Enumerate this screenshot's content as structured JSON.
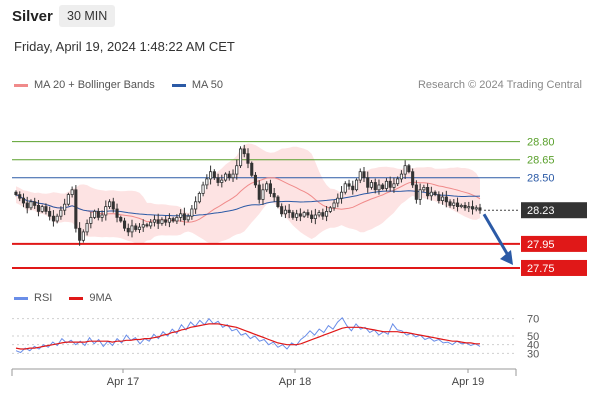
{
  "header": {
    "instrument": "Silver",
    "timeframe": "30 MIN",
    "datetime": "Friday, April 19, 2024 1:48:22 AM CET"
  },
  "price_legend": {
    "items": [
      {
        "label": "MA 20 + Bollinger Bands",
        "color": "#f08a8a"
      },
      {
        "label": "MA 50",
        "color": "#2b5aa6"
      }
    ],
    "credit": "Research © 2024 Trading Central"
  },
  "rsi_legend": {
    "items": [
      {
        "label": "RSI",
        "color": "#6a8ee8"
      },
      {
        "label": "9MA",
        "color": "#e01818"
      }
    ]
  },
  "colors": {
    "resistance": "#5aa02c",
    "pivot": "#2b5aa6",
    "support": "#e01818",
    "candle_up": "#ffffff",
    "candle_down": "#333333",
    "band_fill": "#fde3e3",
    "arrow": "#2b5aa6"
  },
  "chart_data": [
    {
      "type": "candlestick",
      "name": "price",
      "x_ticks": [
        "Apr 17",
        "Apr 18",
        "Apr 19"
      ],
      "ylim": [
        27.65,
        28.93
      ],
      "levels": [
        {
          "label": "28.80",
          "value": 28.8,
          "kind": "resistance"
        },
        {
          "label": "28.65",
          "value": 28.65,
          "kind": "resistance"
        },
        {
          "label": "28.50",
          "value": 28.5,
          "kind": "pivot"
        },
        {
          "label": "28.23",
          "value": 28.23,
          "kind": "last"
        },
        {
          "label": "27.95",
          "value": 27.95,
          "kind": "support"
        },
        {
          "label": "27.75",
          "value": 27.75,
          "kind": "support"
        }
      ],
      "closes": [
        28.36,
        28.33,
        28.29,
        28.25,
        28.3,
        28.27,
        28.22,
        28.26,
        28.22,
        28.18,
        28.14,
        28.18,
        28.23,
        28.28,
        28.36,
        28.4,
        28.08,
        27.98,
        28.05,
        28.12,
        28.17,
        28.22,
        28.17,
        28.19,
        28.26,
        28.3,
        28.24,
        28.17,
        28.14,
        28.08,
        28.05,
        28.1,
        28.07,
        28.09,
        28.11,
        28.1,
        28.13,
        28.15,
        28.12,
        28.15,
        28.13,
        28.16,
        28.14,
        28.17,
        28.2,
        28.15,
        28.18,
        28.24,
        28.3,
        28.37,
        28.44,
        28.49,
        28.55,
        28.5,
        28.46,
        28.48,
        28.53,
        28.5,
        28.53,
        28.6,
        28.74,
        28.7,
        28.62,
        28.52,
        28.44,
        28.32,
        28.4,
        28.45,
        28.37,
        28.34,
        28.26,
        28.2,
        28.23,
        28.21,
        28.17,
        28.2,
        28.18,
        28.21,
        28.19,
        28.16,
        28.19,
        28.21,
        28.18,
        28.22,
        28.25,
        28.29,
        28.33,
        28.38,
        28.45,
        28.43,
        28.4,
        28.48,
        28.55,
        28.5,
        28.42,
        28.46,
        28.4,
        28.44,
        28.41,
        28.47,
        28.42,
        28.45,
        28.49,
        28.53,
        28.6,
        28.55,
        28.44,
        28.32,
        28.4,
        28.42,
        28.35,
        28.38,
        28.36,
        28.31,
        28.34,
        28.3,
        28.27,
        28.29,
        28.26,
        28.27,
        28.25,
        28.26,
        28.24,
        28.25,
        28.23
      ]
    },
    {
      "type": "line",
      "name": "rsi",
      "ylim": [
        20,
        80
      ],
      "y_ticks": [
        30,
        50,
        70
      ],
      "y_ticks_shown": [
        "70",
        "50",
        "40",
        "30"
      ],
      "series": [
        {
          "name": "RSI",
          "values": [
            33,
            31,
            36,
            33,
            38,
            35,
            40,
            37,
            43,
            39,
            47,
            42,
            45,
            40,
            44,
            39,
            48,
            41,
            46,
            38,
            44,
            39,
            47,
            42,
            51,
            45,
            48,
            41,
            47,
            44,
            52,
            47,
            55,
            50,
            58,
            53,
            63,
            57,
            66,
            61,
            68,
            63,
            70,
            64,
            67,
            60,
            63,
            56,
            58,
            51,
            53,
            47,
            50,
            44,
            46,
            40,
            43,
            37,
            40,
            35,
            42,
            39,
            46,
            50,
            56,
            51,
            58,
            54,
            62,
            58,
            66,
            71,
            62,
            56,
            64,
            58,
            60,
            54,
            57,
            51,
            55,
            52,
            64,
            57,
            56,
            51,
            53,
            49,
            51,
            46,
            48,
            44,
            46,
            42,
            43,
            40,
            44,
            41,
            42,
            39,
            41,
            38
          ]
        },
        {
          "name": "9MA",
          "values": [
            36,
            35,
            35,
            36,
            36,
            37,
            38,
            39,
            40,
            41,
            42,
            43,
            43,
            43,
            43,
            43,
            44,
            44,
            44,
            44,
            44,
            43,
            44,
            44,
            45,
            45,
            46,
            46,
            47,
            47,
            48,
            49,
            51,
            52,
            54,
            55,
            57,
            58,
            60,
            61,
            62,
            63,
            64,
            64,
            64,
            63,
            62,
            61,
            60,
            58,
            56,
            54,
            52,
            50,
            48,
            46,
            44,
            42,
            41,
            40,
            40,
            40,
            41,
            43,
            45,
            47,
            49,
            51,
            53,
            55,
            57,
            59,
            60,
            60,
            60,
            60,
            59,
            58,
            57,
            56,
            55,
            55,
            55,
            55,
            54,
            54,
            53,
            52,
            51,
            50,
            49,
            48,
            47,
            46,
            45,
            44,
            44,
            43,
            42,
            42,
            41,
            41
          ]
        }
      ]
    }
  ]
}
